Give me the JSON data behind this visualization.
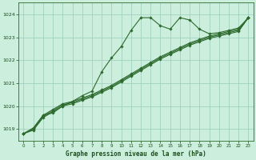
{
  "background_color": "#cceedd",
  "grid_color": "#99ccbb",
  "line_color": "#2d6a2d",
  "xlabel": "Graphe pression niveau de la mer (hPa)",
  "xlabel_color": "#1a4d1a",
  "tick_color": "#1a4d1a",
  "xlim": [
    -0.5,
    23.5
  ],
  "ylim": [
    1018.5,
    1024.5
  ],
  "yticks": [
    1019,
    1020,
    1021,
    1022,
    1023,
    1024
  ],
  "xticks": [
    0,
    1,
    2,
    3,
    4,
    5,
    6,
    7,
    8,
    9,
    10,
    11,
    12,
    13,
    14,
    15,
    16,
    17,
    18,
    19,
    20,
    21,
    22,
    23
  ],
  "series": [
    {
      "x": [
        0,
        1,
        2,
        3,
        4,
        5,
        6,
        7,
        8,
        9,
        10,
        11,
        12,
        13,
        14,
        15,
        16,
        17,
        18,
        19,
        20,
        21,
        22,
        23
      ],
      "y": [
        1018.8,
        1019.0,
        1019.6,
        1019.7,
        1020.0,
        1020.2,
        1020.45,
        1020.65,
        1021.5,
        1022.1,
        1022.6,
        1023.3,
        1023.85,
        1023.85,
        1023.5,
        1023.35,
        1023.85,
        1023.75,
        1023.35,
        1023.15,
        1023.2,
        1023.3,
        1023.4,
        1023.85
      ],
      "marker": "D",
      "markersize": 1.8,
      "linewidth": 0.8
    },
    {
      "x": [
        0,
        1,
        2,
        3,
        4,
        5,
        6,
        7,
        8,
        9,
        10,
        11,
        12,
        13,
        14,
        15,
        16,
        17,
        18,
        19,
        20,
        21,
        22,
        23
      ],
      "y": [
        1018.8,
        1018.95,
        1019.5,
        1019.75,
        1020.0,
        1020.1,
        1020.25,
        1020.4,
        1020.6,
        1020.8,
        1021.05,
        1021.3,
        1021.55,
        1021.8,
        1022.05,
        1022.25,
        1022.45,
        1022.65,
        1022.8,
        1022.95,
        1023.05,
        1023.15,
        1023.25,
        1023.85
      ],
      "marker": "D",
      "markersize": 1.8,
      "linewidth": 0.8
    },
    {
      "x": [
        0,
        1,
        2,
        3,
        4,
        5,
        6,
        7,
        8,
        9,
        10,
        11,
        12,
        13,
        14,
        15,
        16,
        17,
        18,
        19,
        20,
        21,
        22,
        23
      ],
      "y": [
        1018.8,
        1019.0,
        1019.55,
        1019.8,
        1020.05,
        1020.15,
        1020.3,
        1020.45,
        1020.65,
        1020.85,
        1021.1,
        1021.35,
        1021.6,
        1021.85,
        1022.1,
        1022.3,
        1022.5,
        1022.7,
        1022.85,
        1023.0,
        1023.1,
        1023.2,
        1023.3,
        1023.85
      ],
      "marker": "D",
      "markersize": 1.8,
      "linewidth": 0.8
    },
    {
      "x": [
        0,
        1,
        2,
        3,
        4,
        5,
        6,
        7,
        8,
        9,
        10,
        11,
        12,
        13,
        14,
        15,
        16,
        17,
        18,
        19,
        20,
        21,
        22,
        23
      ],
      "y": [
        1018.8,
        1019.05,
        1019.6,
        1019.85,
        1020.1,
        1020.2,
        1020.35,
        1020.5,
        1020.7,
        1020.9,
        1021.15,
        1021.4,
        1021.65,
        1021.9,
        1022.15,
        1022.35,
        1022.55,
        1022.75,
        1022.9,
        1023.05,
        1023.15,
        1023.25,
        1023.35,
        1023.85
      ],
      "marker": "D",
      "markersize": 1.8,
      "linewidth": 0.8
    }
  ]
}
